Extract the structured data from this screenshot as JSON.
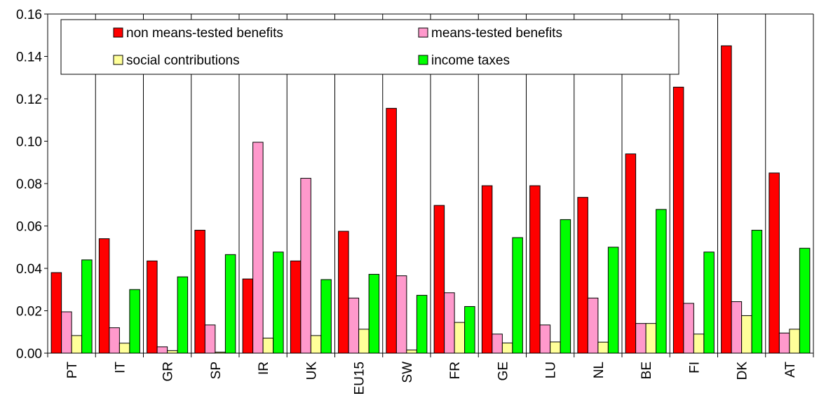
{
  "chart_data": {
    "type": "bar",
    "categories": [
      "PT",
      "IT",
      "GR",
      "SP",
      "IR",
      "UK",
      "EU15",
      "SW",
      "FR",
      "GE",
      "LU",
      "NL",
      "BE",
      "FI",
      "DK",
      "AT"
    ],
    "ylim": [
      0,
      0.16
    ],
    "yticks": [
      "0.00",
      "0.02",
      "0.04",
      "0.06",
      "0.08",
      "0.10",
      "0.12",
      "0.14",
      "0.16"
    ],
    "grid": "vertical category separators",
    "legend_position": "top",
    "series": [
      {
        "name": "non means-tested benefits",
        "color": "#ff0000",
        "values": [
          0.038,
          0.054,
          0.0435,
          0.058,
          0.035,
          0.0435,
          0.0575,
          0.1155,
          0.0697,
          0.079,
          0.079,
          0.0735,
          0.094,
          0.1255,
          0.145,
          0.085
        ]
      },
      {
        "name": "means-tested benefits",
        "color": "#ff99cc",
        "values": [
          0.0195,
          0.012,
          0.003,
          0.0133,
          0.0995,
          0.0825,
          0.026,
          0.0365,
          0.0285,
          0.009,
          0.0133,
          0.026,
          0.014,
          0.0235,
          0.0243,
          0.0095
        ]
      },
      {
        "name": "social contributions",
        "color": "#ffff99",
        "values": [
          0.0083,
          0.0047,
          0.0012,
          0.0005,
          0.0071,
          0.0083,
          0.0113,
          0.0015,
          0.0145,
          0.0048,
          0.0053,
          0.0052,
          0.014,
          0.009,
          0.0177,
          0.0113
        ]
      },
      {
        "name": "income taxes",
        "color": "#00ff00",
        "values": [
          0.044,
          0.03,
          0.036,
          0.0465,
          0.0477,
          0.0347,
          0.0372,
          0.0273,
          0.022,
          0.0545,
          0.063,
          0.05,
          0.0678,
          0.0477,
          0.058,
          0.0495
        ]
      }
    ]
  }
}
